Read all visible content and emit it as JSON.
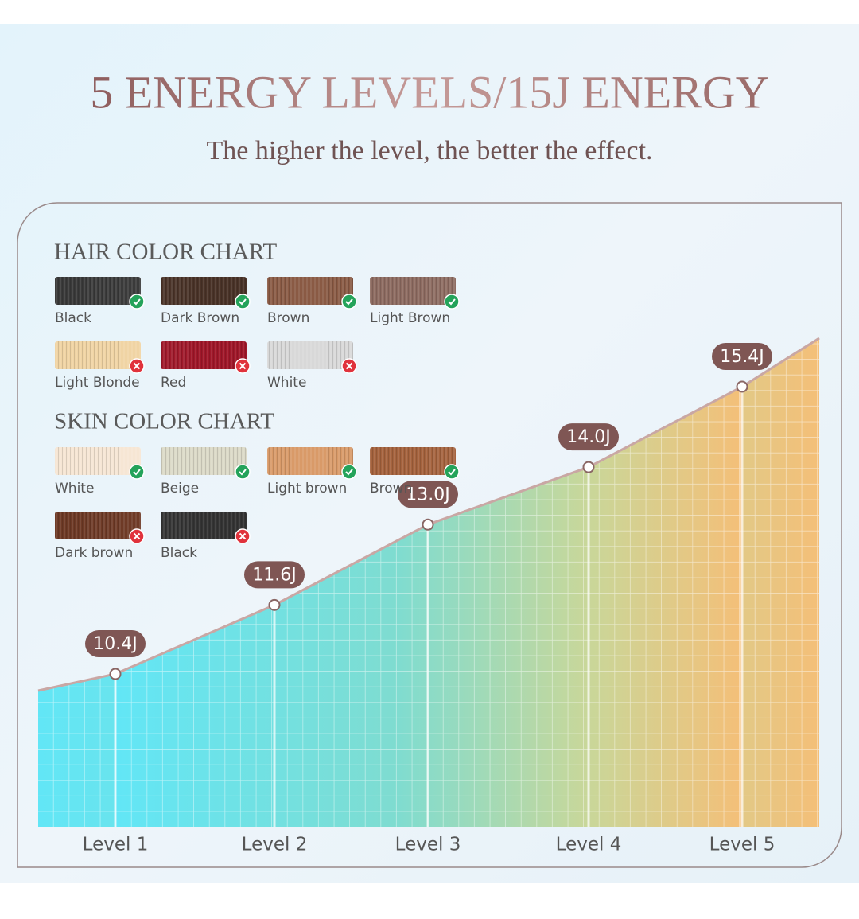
{
  "header": {
    "title": "5 ENERGY LEVELS/15J ENERGY",
    "subtitle": "The higher the level, the better the effect."
  },
  "hair_chart": {
    "title": "HAIR COLOR CHART",
    "items": [
      {
        "label": "Black",
        "color": "#3a3a3a",
        "ok": true
      },
      {
        "label": "Dark Brown",
        "color": "#4a3328",
        "ok": true
      },
      {
        "label": "Brown",
        "color": "#8a5a44",
        "ok": true
      },
      {
        "label": "Light Brown",
        "color": "#8e6c62",
        "ok": true
      },
      {
        "label": "Light Blonde",
        "color": "#f0d4a4",
        "ok": false
      },
      {
        "label": "Red",
        "color": "#a0182a",
        "ok": false
      },
      {
        "label": "White",
        "color": "#d8d8d8",
        "ok": false
      }
    ]
  },
  "skin_chart": {
    "title": "SKIN COLOR CHART",
    "items": [
      {
        "label": "White",
        "color": "#f6e6d4",
        "ok": true
      },
      {
        "label": "Beige",
        "color": "#dcdac8",
        "ok": true
      },
      {
        "label": "Light brown",
        "color": "#d99a68",
        "ok": true
      },
      {
        "label": "Brown",
        "color": "#a5633e",
        "ok": true
      },
      {
        "label": "Dark brown",
        "color": "#6e3a26",
        "ok": false
      },
      {
        "label": "Black",
        "color": "#343434",
        "ok": false
      }
    ]
  },
  "chart_data": {
    "type": "area",
    "categories": [
      "Level 1",
      "Level 2",
      "Level 3",
      "Level 4",
      "Level 5"
    ],
    "values": [
      10.4,
      11.6,
      13.0,
      14.0,
      15.4
    ],
    "value_labels": [
      "10.4J",
      "11.6J",
      "13.0J",
      "14.0J",
      "15.4J"
    ],
    "grid": true
  }
}
